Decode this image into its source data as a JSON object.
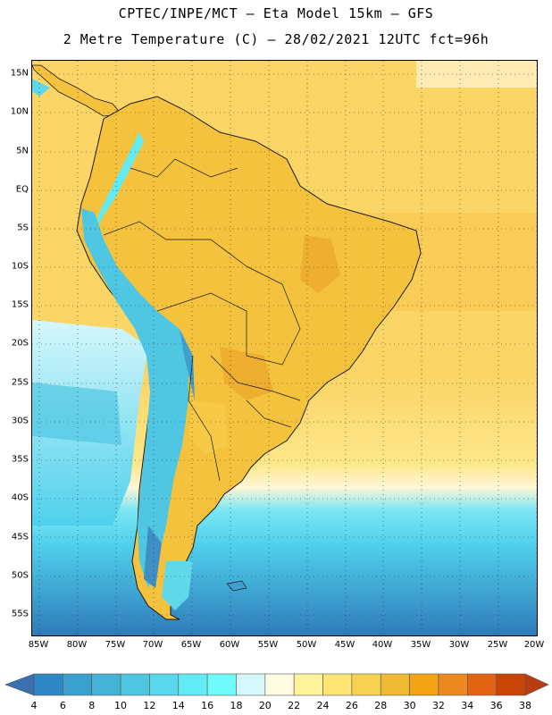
{
  "header": {
    "title": "CPTEC/INPE/MCT –  Eta Model 15km – GFS",
    "subtitle": "2 Metre Temperature (C) – 28/02/2021 12UTC fct=96h"
  },
  "map": {
    "lat_labels": [
      "15N",
      "10N",
      "5N",
      "EQ",
      "5S",
      "10S",
      "15S",
      "20S",
      "25S",
      "30S",
      "35S",
      "40S",
      "45S",
      "50S",
      "55S"
    ],
    "lon_labels": [
      "85W",
      "80W",
      "75W",
      "70W",
      "65W",
      "60W",
      "55W",
      "50W",
      "45W",
      "40W",
      "35W",
      "30W",
      "25W",
      "20W"
    ],
    "colors": {
      "ocean_warm": "#fbd566",
      "ocean_hot": "#f5c446",
      "land_base": "#f4c23c",
      "land_hot": "#eeae30",
      "andes": "#4fc6e2",
      "andes_high": "#3ea0cf",
      "south_cool": "#4fd0ec",
      "south_cold": "#3d8fc4",
      "border": "#1a1a1a"
    }
  },
  "legend": {
    "unit": "C",
    "labels": [
      "4",
      "6",
      "8",
      "10",
      "12",
      "14",
      "16",
      "18",
      "20",
      "22",
      "24",
      "26",
      "28",
      "30",
      "32",
      "34",
      "36",
      "38"
    ],
    "colors": [
      "#3a6fb0",
      "#2f86c4",
      "#3aa0cc",
      "#45b2d6",
      "#4ec6e0",
      "#58d8ea",
      "#62ebf2",
      "#70fbfb",
      "#d6f7fb",
      "#fffbe2",
      "#fef39a",
      "#fde475",
      "#f7d252",
      "#efba33",
      "#f3a313",
      "#ec8a21",
      "#e26313",
      "#c94507",
      "#b83d10"
    ]
  }
}
